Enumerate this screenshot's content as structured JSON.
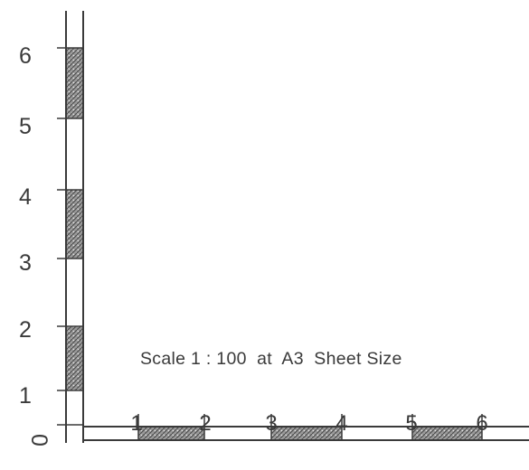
{
  "scale_bar": {
    "vertical_labels": [
      "0",
      "1",
      "2",
      "3",
      "4",
      "5",
      "6"
    ],
    "horizontal_labels": [
      "1",
      "2",
      "3",
      "4",
      "5",
      "6"
    ],
    "vertical_shaded_segments": [
      1,
      3,
      5
    ],
    "horizontal_shaded_segments": [
      1,
      3,
      5
    ],
    "note": "Scale 1 : 100  at  A3  Sheet Size",
    "colors": {
      "ink": "#3a3a3a",
      "hatch": "#7a7a7a",
      "paper": "#ffffff"
    }
  }
}
